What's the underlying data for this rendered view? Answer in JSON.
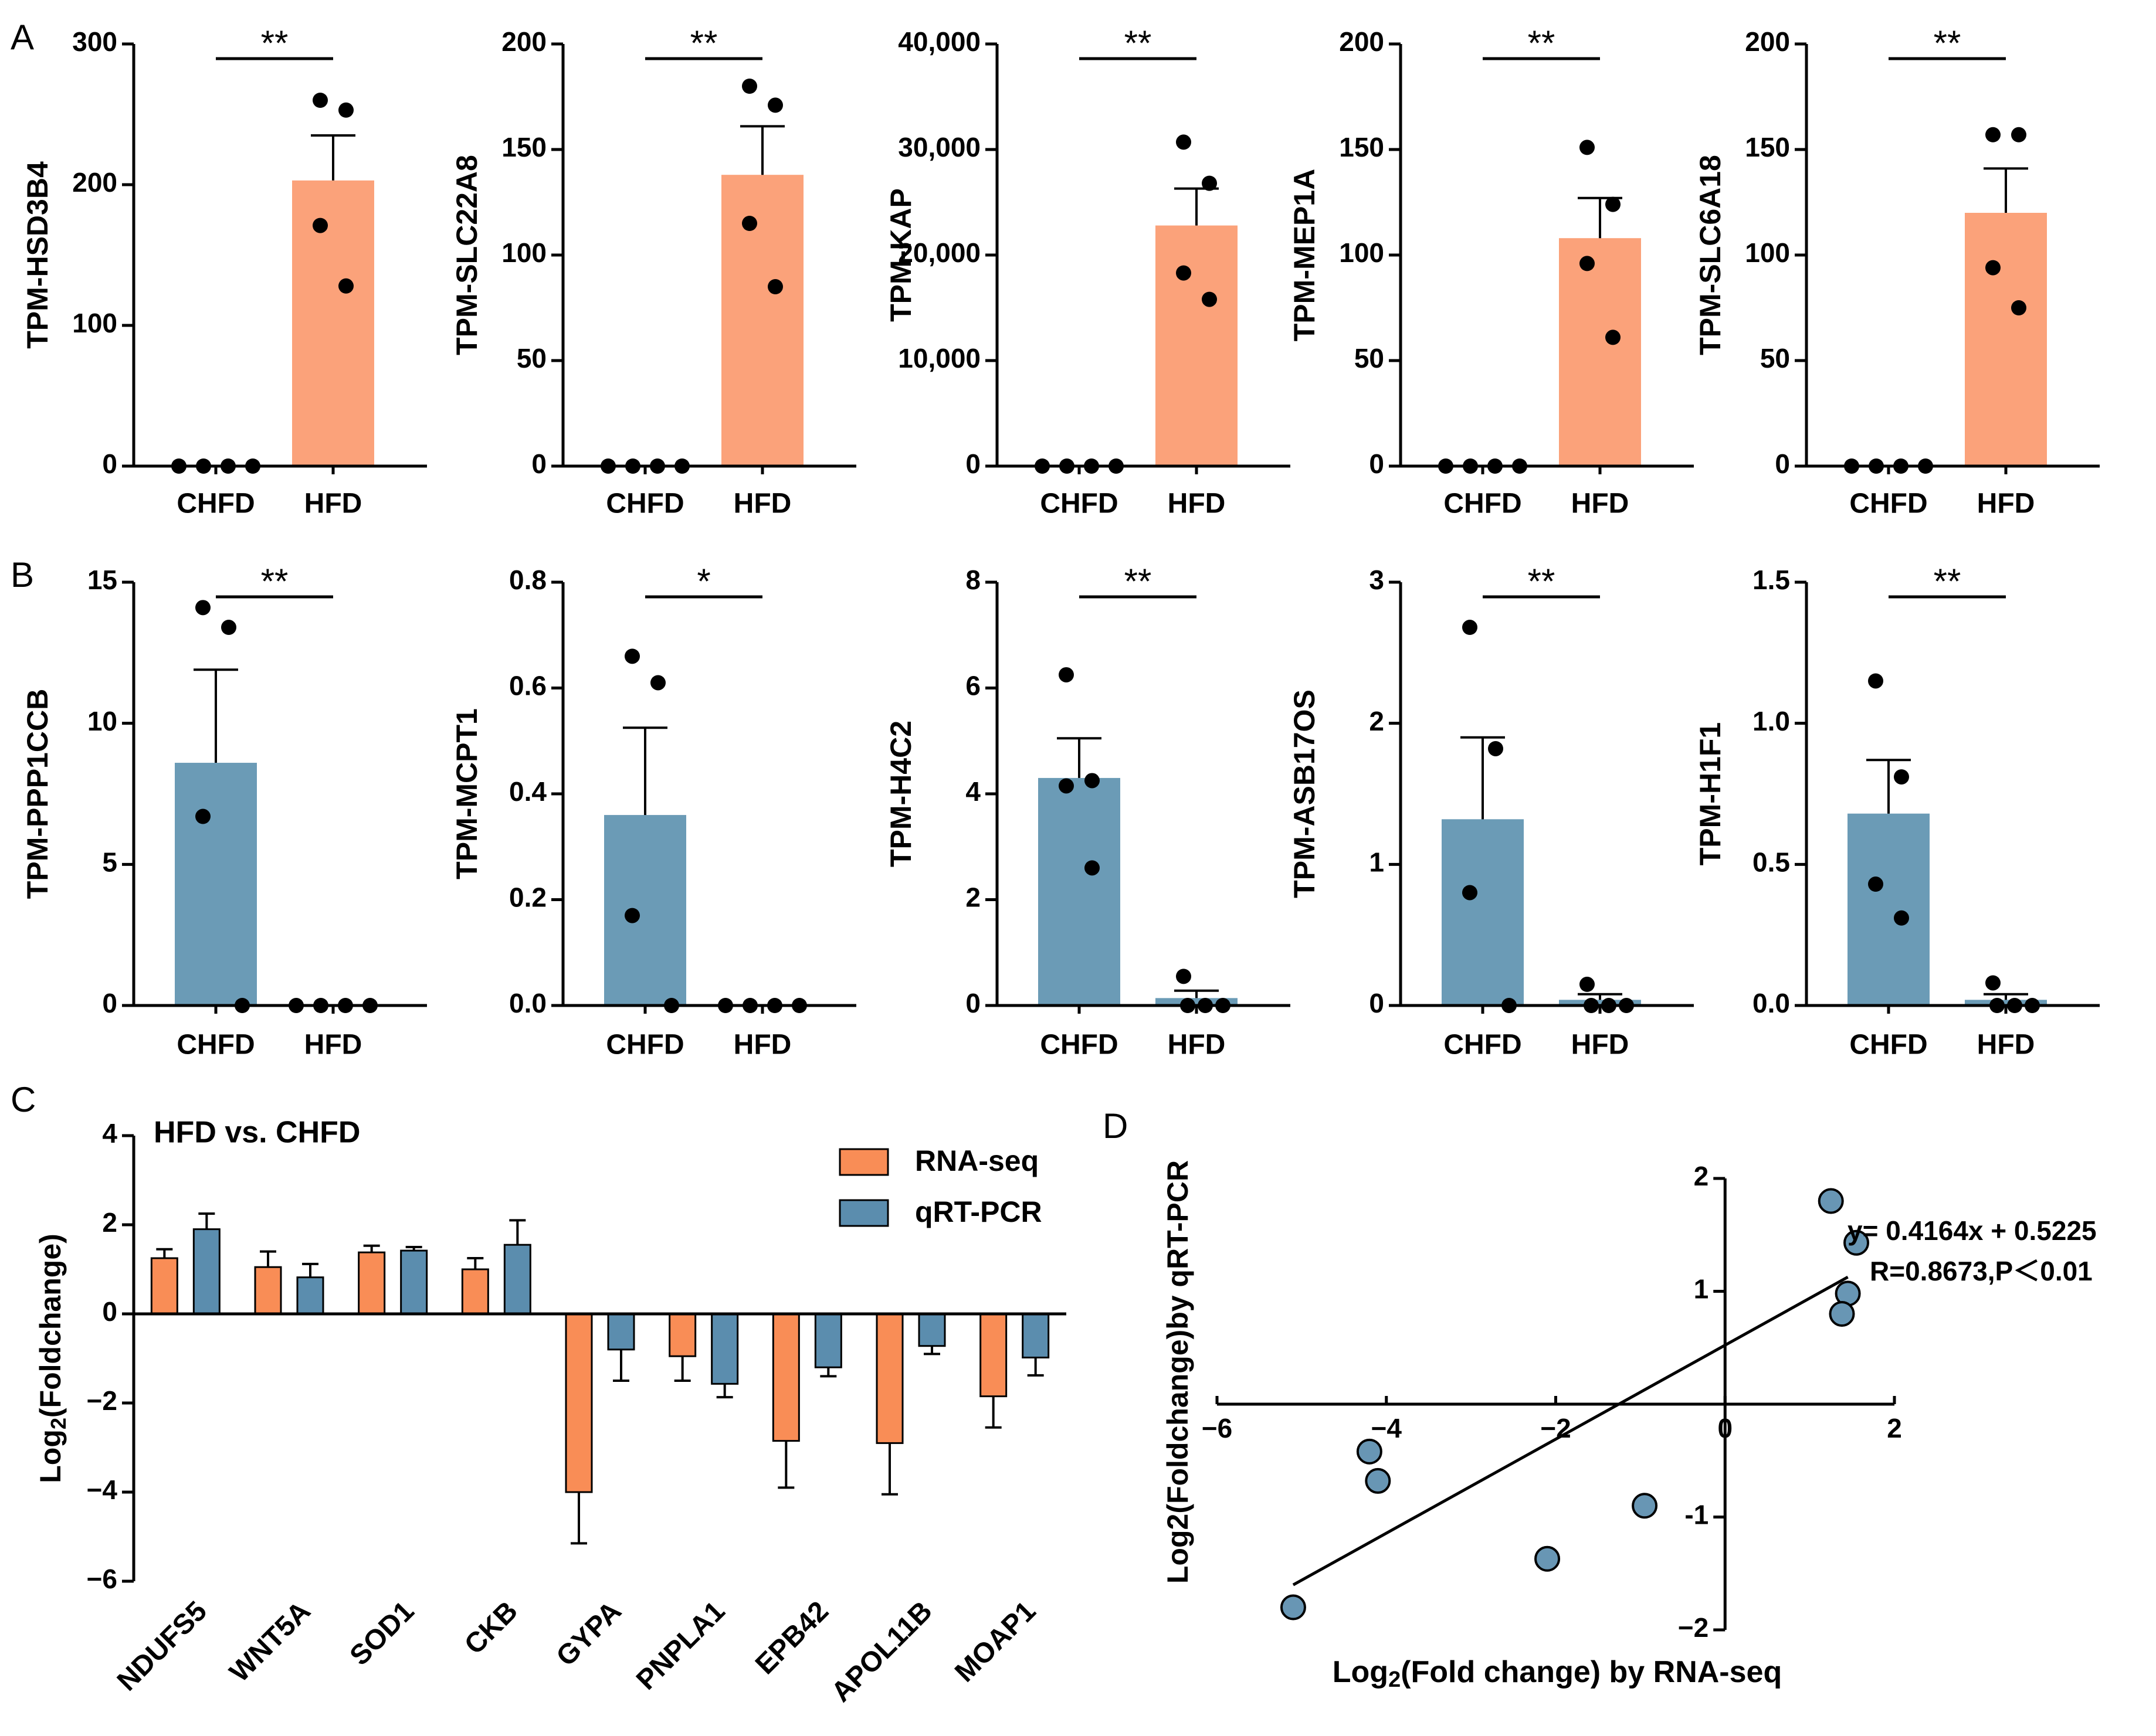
{
  "colors": {
    "up": "#FBA27A",
    "down": "#6B9BB6",
    "rnaseq": "#F98D56",
    "qrtpcr": "#5B8DAE",
    "scatter_fill": "#6896B4",
    "black": "#000000"
  },
  "panel_labels": {
    "A": "A",
    "B": "B",
    "C": "C",
    "D": "D"
  },
  "chart_data": [
    {
      "panel": "A",
      "type": "bar",
      "ylabel": "TPM-HSD3B4",
      "categories": [
        "CHFD",
        "HFD"
      ],
      "ylim": [
        0,
        300
      ],
      "ticks": [
        "0",
        "100",
        "200",
        "300"
      ],
      "tick_values": [
        0,
        100,
        200,
        300
      ],
      "means": [
        0,
        203
      ],
      "sem": [
        0,
        32
      ],
      "points": [
        [
          0,
          0,
          0,
          0
        ],
        [
          260,
          253,
          171,
          128
        ]
      ],
      "significance": "**",
      "color": "up"
    },
    {
      "panel": "A",
      "type": "bar",
      "ylabel": "TPM-SLC22A8",
      "categories": [
        "CHFD",
        "HFD"
      ],
      "ylim": [
        0,
        200
      ],
      "ticks": [
        "0",
        "50",
        "100",
        "150",
        "200"
      ],
      "tick_values": [
        0,
        50,
        100,
        150,
        200
      ],
      "means": [
        0,
        138
      ],
      "sem": [
        0,
        23
      ],
      "points": [
        [
          0,
          0,
          0,
          0
        ],
        [
          180,
          171,
          115,
          85
        ]
      ],
      "significance": "**",
      "color": "up"
    },
    {
      "panel": "A",
      "type": "bar",
      "ylabel": "TPM-KAP",
      "categories": [
        "CHFD",
        "HFD"
      ],
      "ylim": [
        0,
        40000
      ],
      "ticks": [
        "0",
        "10,000",
        "20,000",
        "30,000",
        "40,000"
      ],
      "tick_values": [
        0,
        10000,
        20000,
        30000,
        40000
      ],
      "means": [
        0,
        22800
      ],
      "sem": [
        0,
        3500
      ],
      "points": [
        [
          0,
          0,
          0,
          0
        ],
        [
          30700,
          26800,
          18300,
          15800
        ]
      ],
      "significance": "**",
      "color": "up"
    },
    {
      "panel": "A",
      "type": "bar",
      "ylabel": "TPM-MEP1A",
      "categories": [
        "CHFD",
        "HFD"
      ],
      "ylim": [
        0,
        200
      ],
      "ticks": [
        "0",
        "50",
        "100",
        "150",
        "200"
      ],
      "tick_values": [
        0,
        50,
        100,
        150,
        200
      ],
      "means": [
        0,
        108
      ],
      "sem": [
        0,
        19
      ],
      "points": [
        [
          0,
          0,
          0,
          0
        ],
        [
          151,
          124,
          96,
          61
        ]
      ],
      "significance": "**",
      "color": "up"
    },
    {
      "panel": "A",
      "type": "bar",
      "ylabel": "TPM-SLC6A18",
      "categories": [
        "CHFD",
        "HFD"
      ],
      "ylim": [
        0,
        200
      ],
      "ticks": [
        "0",
        "50",
        "100",
        "150",
        "200"
      ],
      "tick_values": [
        0,
        50,
        100,
        150,
        200
      ],
      "means": [
        0,
        120
      ],
      "sem": [
        0,
        21
      ],
      "points": [
        [
          0,
          0,
          0,
          0
        ],
        [
          157,
          157,
          94,
          75
        ]
      ],
      "significance": "**",
      "color": "up"
    },
    {
      "panel": "B",
      "type": "bar",
      "ylabel": "TPM-PPP1CCB",
      "categories": [
        "CHFD",
        "HFD"
      ],
      "ylim": [
        0,
        15
      ],
      "ticks": [
        "0",
        "5",
        "10",
        "15"
      ],
      "tick_values": [
        0,
        5,
        10,
        15
      ],
      "means": [
        8.6,
        0
      ],
      "sem": [
        3.3,
        0
      ],
      "points": [
        [
          14.1,
          13.4,
          6.7,
          0
        ],
        [
          0,
          0,
          0,
          0
        ]
      ],
      "significance": "**",
      "color": "down"
    },
    {
      "panel": "B",
      "type": "bar",
      "ylabel": "TPM-MCPT1",
      "categories": [
        "CHFD",
        "HFD"
      ],
      "ylim": [
        0,
        0.8
      ],
      "ticks": [
        "0.0",
        "0.2",
        "0.4",
        "0.6",
        "0.8"
      ],
      "tick_values": [
        0,
        0.2,
        0.4,
        0.6,
        0.8
      ],
      "means": [
        0.36,
        0
      ],
      "sem": [
        0.165,
        0
      ],
      "points": [
        [
          0.66,
          0.61,
          0.17,
          0
        ],
        [
          0,
          0,
          0,
          0
        ]
      ],
      "significance": "*",
      "color": "down"
    },
    {
      "panel": "B",
      "type": "bar",
      "ylabel": "TPM-H4C2",
      "categories": [
        "CHFD",
        "HFD"
      ],
      "ylim": [
        0,
        8
      ],
      "ticks": [
        "0",
        "2",
        "4",
        "6",
        "8"
      ],
      "tick_values": [
        0,
        2,
        4,
        6,
        8
      ],
      "means": [
        4.3,
        0.14
      ],
      "sem": [
        0.75,
        0.14
      ],
      "points": [
        [
          6.25,
          4.25,
          4.15,
          2.6
        ],
        [
          0.55,
          0,
          0,
          0
        ]
      ],
      "significance": "**",
      "color": "down"
    },
    {
      "panel": "B",
      "type": "bar",
      "ylabel": "TPM-ASB17OS",
      "categories": [
        "CHFD",
        "HFD"
      ],
      "ylim": [
        0,
        3
      ],
      "ticks": [
        "0",
        "1",
        "2",
        "3"
      ],
      "tick_values": [
        0,
        1,
        2,
        3
      ],
      "means": [
        1.32,
        0.04
      ],
      "sem": [
        0.58,
        0.04
      ],
      "points": [
        [
          2.68,
          1.82,
          0.8,
          0
        ],
        [
          0.15,
          0,
          0,
          0
        ]
      ],
      "significance": "**",
      "color": "down"
    },
    {
      "panel": "B",
      "type": "bar",
      "ylabel": "TPM-H1F1",
      "categories": [
        "CHFD",
        "HFD"
      ],
      "ylim": [
        0,
        1.5
      ],
      "ticks": [
        "0.0",
        "0.5",
        "1.0",
        "1.5"
      ],
      "tick_values": [
        0,
        0.5,
        1,
        1.5
      ],
      "means": [
        0.68,
        0.02
      ],
      "sem": [
        0.19,
        0.02
      ],
      "points": [
        [
          1.15,
          0.81,
          0.43,
          0.31
        ],
        [
          0.08,
          0,
          0,
          0
        ]
      ],
      "significance": "**",
      "color": "down"
    },
    {
      "panel": "C",
      "type": "bar",
      "title": "HFD vs. CHFD",
      "ylabel_main": "Log",
      "ylabel_sub": "2",
      "ylabel_rest": "(Foldchange)",
      "ylim": [
        -6,
        4
      ],
      "ticks": [
        "−6",
        "−4",
        "−2",
        "0",
        "2",
        "4"
      ],
      "tick_values": [
        -6,
        -4,
        -2,
        0,
        2,
        4
      ],
      "categories": [
        "NDUFS5",
        "WNT5A",
        "SOD1",
        "CKB",
        "GYPA",
        "PNPLA1",
        "EPB42",
        "APOL11B",
        "MOAP1"
      ],
      "series": [
        {
          "name": "RNA-seq",
          "values": [
            1.25,
            1.05,
            1.38,
            1.0,
            -4.0,
            -0.95,
            -2.85,
            -2.9,
            -1.85
          ],
          "err": [
            0.2,
            0.35,
            0.15,
            0.25,
            1.15,
            0.55,
            1.05,
            1.15,
            0.7
          ]
        },
        {
          "name": "qRT-PCR",
          "values": [
            1.9,
            0.82,
            1.42,
            1.55,
            -0.8,
            -1.57,
            -1.2,
            -0.72,
            -0.98
          ],
          "err": [
            0.35,
            0.3,
            0.08,
            0.55,
            0.7,
            0.3,
            0.2,
            0.18,
            0.4
          ]
        }
      ]
    },
    {
      "panel": "D",
      "type": "scatter",
      "xlabel_main": "Log",
      "xlabel_sub": "2",
      "xlabel_rest": "(Fold change) by RNA-seq",
      "ylabel": "Log2(Foldchange)by qRT-PCR",
      "xlim": [
        -6,
        2
      ],
      "ylim": [
        -2,
        2
      ],
      "xticks": [
        "−6",
        "−4",
        "−2",
        "0",
        "2"
      ],
      "xtick_values": [
        -6,
        -4,
        -2,
        0,
        2
      ],
      "yticks": [
        "−2",
        "-1",
        "1",
        "2"
      ],
      "ytick_values": [
        -2,
        -1,
        1,
        2
      ],
      "points": [
        [
          1.25,
          1.8
        ],
        [
          1.55,
          1.43
        ],
        [
          1.45,
          0.98
        ],
        [
          1.38,
          0.8
        ],
        [
          -4.2,
          -0.42
        ],
        [
          -4.1,
          -0.68
        ],
        [
          -0.95,
          -0.9
        ],
        [
          -2.1,
          -1.37
        ],
        [
          -5.1,
          -1.8
        ]
      ],
      "fit": {
        "slope": 0.4164,
        "intercept": 0.5225,
        "x_range": [
          -5.1,
          1.45
        ]
      },
      "annotations": [
        "y= 0.4164x + 0.5225",
        "R=0.8673,P＜0.01"
      ]
    }
  ]
}
